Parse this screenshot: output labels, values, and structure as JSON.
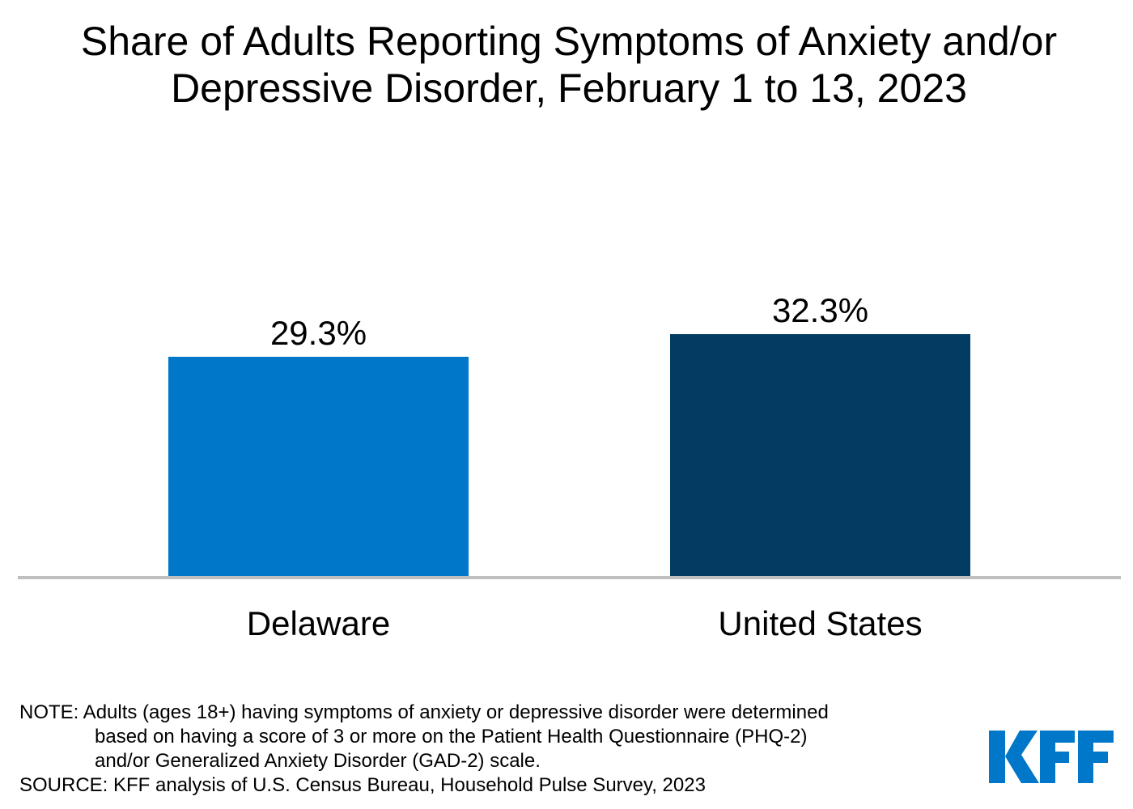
{
  "chart_data": {
    "type": "bar",
    "title_line1": "Share of Adults Reporting Symptoms of Anxiety and/or",
    "title_line2": "Depressive Disorder, February 1 to 13, 2023",
    "categories": [
      "Delaware",
      "United States"
    ],
    "values": [
      29.3,
      32.3
    ],
    "data_labels": [
      "29.3%",
      "32.3%"
    ],
    "colors": [
      "#0077C8",
      "#023C62"
    ],
    "xlabel": "",
    "ylabel": "",
    "ylim": [
      0,
      32.3
    ],
    "grid": false
  },
  "notes": {
    "note_line1": "NOTE: Adults (ages 18+) having symptoms of anxiety or depressive disorder were determined",
    "note_line2": "based on having a score of 3 or more on the Patient Health Questionnaire (PHQ-2)",
    "note_line3": "and/or Generalized Anxiety Disorder (GAD-2) scale.",
    "source": "SOURCE: KFF analysis of U.S. Census Bureau, Household Pulse Survey, 2023"
  },
  "logo": {
    "text": "KFF",
    "color": "#0077C8"
  }
}
